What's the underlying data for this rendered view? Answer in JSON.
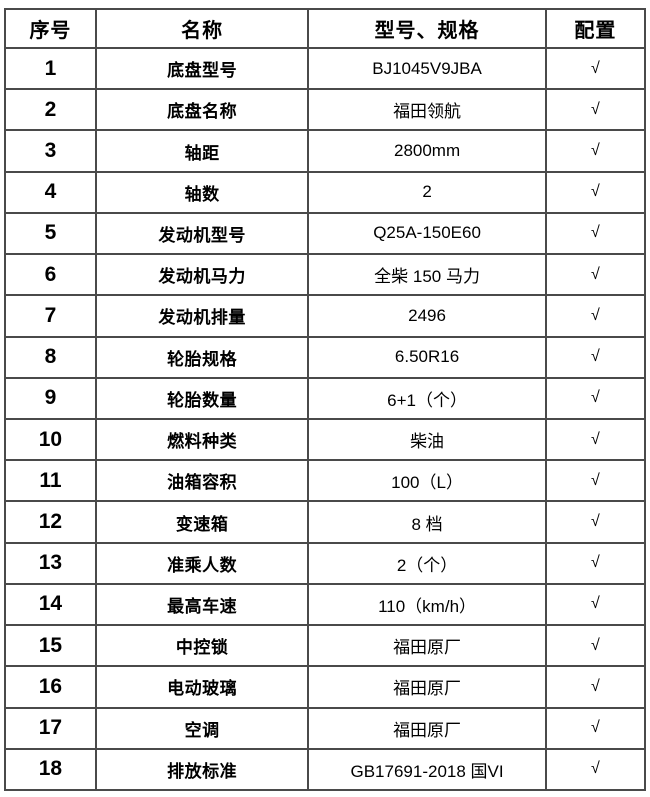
{
  "table": {
    "headers": [
      "序号",
      "名称",
      "型号、规格",
      "配置"
    ],
    "rows": [
      {
        "no": "1",
        "name": "底盘型号",
        "spec": "BJ1045V9JBA",
        "check": "√"
      },
      {
        "no": "2",
        "name": "底盘名称",
        "spec": "福田领航",
        "check": "√"
      },
      {
        "no": "3",
        "name": "轴距",
        "spec": "2800mm",
        "check": "√"
      },
      {
        "no": "4",
        "name": "轴数",
        "spec": "2",
        "check": "√"
      },
      {
        "no": "5",
        "name": "发动机型号",
        "spec": "Q25A-150E60",
        "check": "√"
      },
      {
        "no": "6",
        "name": "发动机马力",
        "spec": "全柴 150 马力",
        "check": "√"
      },
      {
        "no": "7",
        "name": "发动机排量",
        "spec": "2496",
        "check": "√"
      },
      {
        "no": "8",
        "name": "轮胎规格",
        "spec": "6.50R16",
        "check": "√"
      },
      {
        "no": "9",
        "name": "轮胎数量",
        "spec": "6+1（个）",
        "check": "√"
      },
      {
        "no": "10",
        "name": "燃料种类",
        "spec": "柴油",
        "check": "√"
      },
      {
        "no": "11",
        "name": "油箱容积",
        "spec": "100（L）",
        "check": "√"
      },
      {
        "no": "12",
        "name": "变速箱",
        "spec": "8 档",
        "check": "√"
      },
      {
        "no": "13",
        "name": "准乘人数",
        "spec": "2（个）",
        "check": "√"
      },
      {
        "no": "14",
        "name": "最高车速",
        "spec": "110（km/h）",
        "check": "√"
      },
      {
        "no": "15",
        "name": "中控锁",
        "spec": "福田原厂",
        "check": "√"
      },
      {
        "no": "16",
        "name": "电动玻璃",
        "spec": "福田原厂",
        "check": "√"
      },
      {
        "no": "17",
        "name": "空调",
        "spec": "福田原厂",
        "check": "√"
      },
      {
        "no": "18",
        "name": "排放标准",
        "spec": "GB17691-2018 国VI",
        "check": "√"
      }
    ]
  },
  "colors": {
    "background": "#ffffff",
    "text": "#000000",
    "grid_border": "#4a4a4a",
    "outer_border": "#1f1f1f"
  }
}
